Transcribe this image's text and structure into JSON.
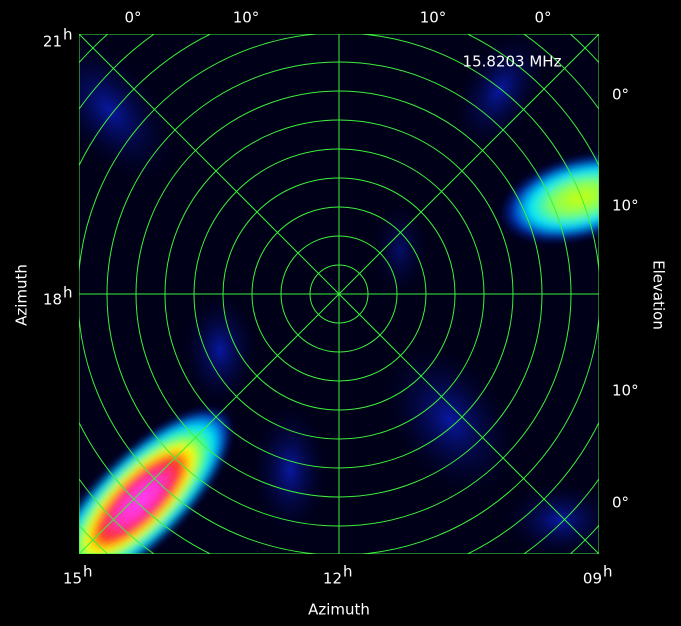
{
  "plot": {
    "frequency": "15.8203 MHz",
    "x_axis_label": "Azimuth",
    "y_axis_label": "Azimuth",
    "y2_axis_label": "Elevation",
    "bottom_ticks": [
      {
        "text": "15",
        "sup": "h"
      },
      {
        "text": "12",
        "sup": "h"
      },
      {
        "text": "09",
        "sup": "h"
      }
    ],
    "left_ticks": [
      {
        "text": "21",
        "sup": "h"
      },
      {
        "text": "18",
        "sup": "h"
      }
    ],
    "top_ticks": [
      "0°",
      "10°",
      "10°",
      "0°"
    ],
    "right_ticks": [
      "0°",
      "10°",
      "10°",
      "0°"
    ]
  }
}
